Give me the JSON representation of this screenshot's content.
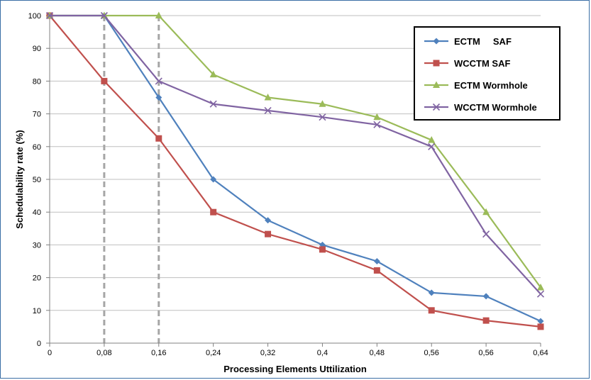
{
  "chart_data": {
    "type": "line",
    "title": "",
    "xlabel": "Processing Elements Uttilization",
    "ylabel": "Schedulability rate (%)",
    "categories": [
      "0",
      "0,08",
      "0,16",
      "0,24",
      "0,32",
      "0,4",
      "0,48",
      "0,56",
      "0,56",
      "0,64"
    ],
    "ylim": [
      0,
      100
    ],
    "yticks": [
      "0",
      "10",
      "20",
      "30",
      "40",
      "50",
      "60",
      "70",
      "80",
      "90",
      "100"
    ],
    "grid": "horizontal",
    "legend_position": "top-right",
    "reference_lines": [
      {
        "category_index": 1,
        "style": "dashed",
        "color": "#a6a6a6"
      },
      {
        "category_index": 2,
        "style": "dashed",
        "color": "#a6a6a6"
      }
    ],
    "series": [
      {
        "name": "ECTM     SAF",
        "color": "#4f81bd",
        "marker": "diamond",
        "values": [
          100,
          100,
          75,
          50,
          37.5,
          30,
          25,
          15.4,
          14.3,
          6.7
        ]
      },
      {
        "name": "WCCTM SAF",
        "color": "#c0504d",
        "marker": "square",
        "values": [
          100,
          80,
          62.5,
          40,
          33.3,
          28.6,
          22.2,
          10,
          6.9,
          5
        ]
      },
      {
        "name": "ECTM Wormhole",
        "color": "#9bbb59",
        "marker": "triangle",
        "values": [
          100,
          100,
          100,
          82,
          75,
          73,
          69,
          62,
          40,
          17
        ]
      },
      {
        "name": "WCCTM Wormhole",
        "color": "#8064a2",
        "marker": "x",
        "values": [
          100,
          100,
          80,
          73,
          71,
          69,
          66.7,
          60,
          33.3,
          15
        ]
      }
    ]
  }
}
